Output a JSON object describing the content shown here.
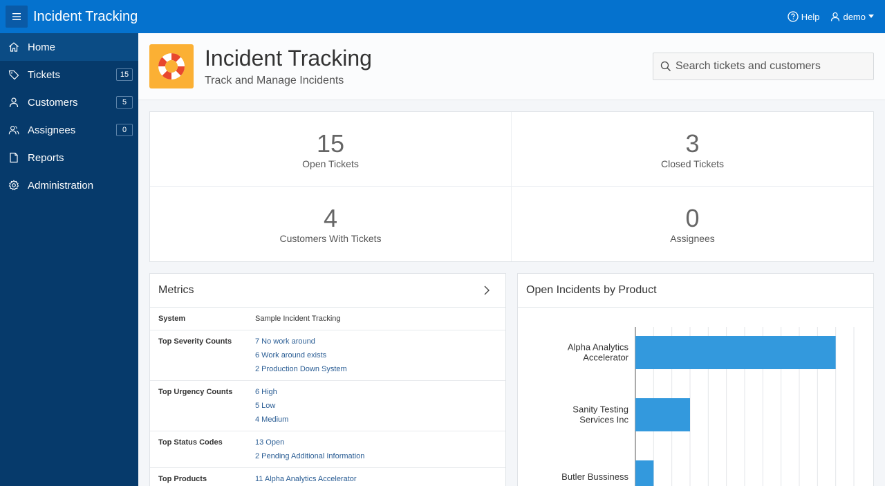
{
  "app": {
    "title": "Incident Tracking"
  },
  "topbar": {
    "help_label": "Help",
    "user_label": "demo"
  },
  "sidebar": {
    "items": [
      {
        "label": "Home",
        "badge": null,
        "icon": "home-icon"
      },
      {
        "label": "Tickets",
        "badge": "15",
        "icon": "tag-icon"
      },
      {
        "label": "Customers",
        "badge": "5",
        "icon": "user-icon"
      },
      {
        "label": "Assignees",
        "badge": "0",
        "icon": "users-icon"
      },
      {
        "label": "Reports",
        "badge": null,
        "icon": "document-icon"
      },
      {
        "label": "Administration",
        "badge": null,
        "icon": "gear-icon"
      }
    ]
  },
  "hero": {
    "title": "Incident Tracking",
    "subtitle": "Track and Manage Incidents",
    "icon": "lifebuoy-icon",
    "icon_color": "#fbb034"
  },
  "search": {
    "placeholder": "Search tickets and customers"
  },
  "stats": [
    {
      "value": "15",
      "label": "Open Tickets"
    },
    {
      "value": "3",
      "label": "Closed Tickets"
    },
    {
      "value": "4",
      "label": "Customers With Tickets"
    },
    {
      "value": "0",
      "label": "Assignees"
    }
  ],
  "metrics": {
    "title": "Metrics",
    "rows": [
      {
        "key": "System",
        "values": [
          "Sample Incident Tracking"
        ],
        "links": false
      },
      {
        "key": "Top Severity Counts",
        "values": [
          "7 No work around",
          "6 Work around exists",
          "2 Production Down System"
        ],
        "links": true
      },
      {
        "key": "Top Urgency Counts",
        "values": [
          "6 High",
          "5 Low",
          "4 Medium"
        ],
        "links": true
      },
      {
        "key": "Top Status Codes",
        "values": [
          "13 Open",
          "2 Pending Additional Information"
        ],
        "links": true
      },
      {
        "key": "Top Products",
        "values": [
          "11 Alpha Analytics Accelerator"
        ],
        "links": true
      }
    ]
  },
  "chart": {
    "title": "Open Incidents by Product"
  },
  "chart_data": {
    "type": "bar",
    "orientation": "horizontal",
    "categories": [
      "Alpha Analytics Accelerator",
      "Sanity Testing Services Inc",
      "Butler Bussiness"
    ],
    "values": [
      11,
      3,
      1
    ],
    "xlim": [
      0,
      12
    ],
    "grid": true,
    "bar_color": "#3399dd"
  },
  "colors": {
    "topbar": "#0572ce",
    "sidebar": "#063a6b",
    "sidebar_active": "#0b4c85",
    "link": "#2a5d94"
  }
}
